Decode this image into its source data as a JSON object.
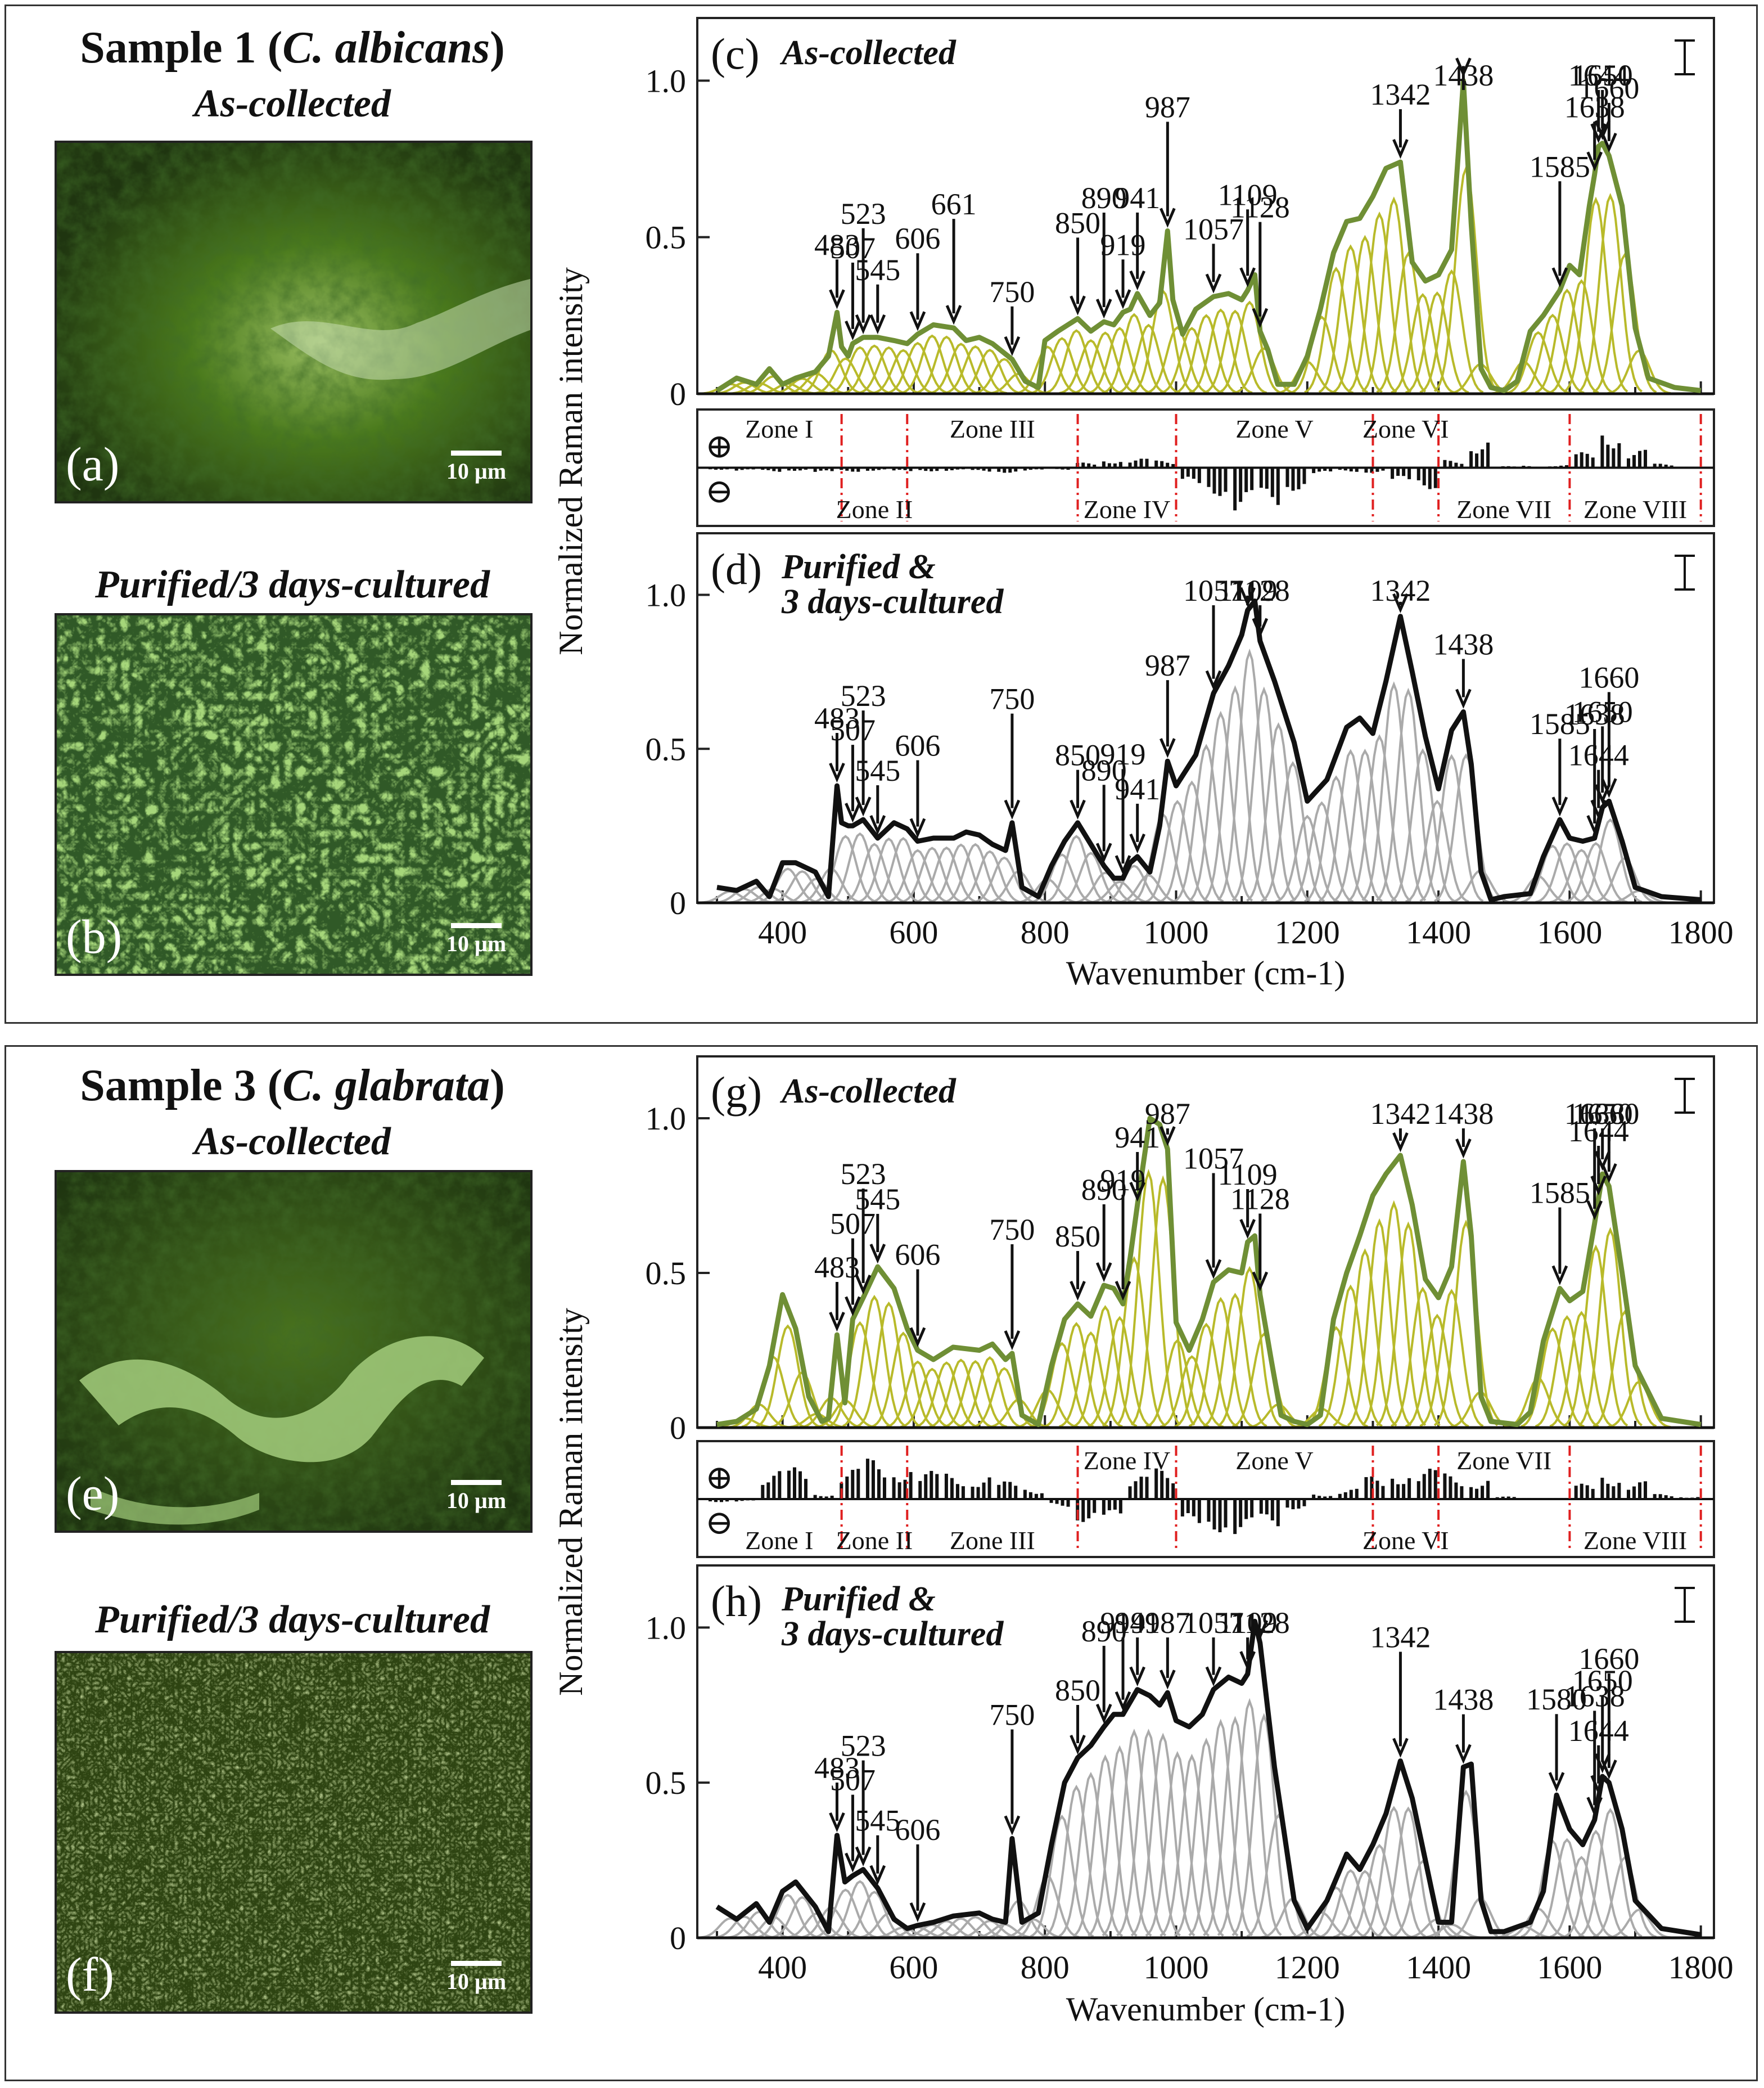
{
  "samples": [
    {
      "title_prefix": "Sample 1 (",
      "species": "C. albicans",
      "title_suffix": ")",
      "label_collected": "As-collected",
      "label_cultured": "Purified/3 days-cultured",
      "micro_letters": [
        "(a)",
        "(b)"
      ],
      "scale_label": "10 µm",
      "micrograph_colors": {
        "collected": [
          "#1f3510",
          "#4a7a1c",
          "#9bbf62"
        ],
        "cultured": [
          "#0c1a06",
          "#2c4a10",
          "#a6d67a"
        ]
      }
    },
    {
      "title_prefix": "Sample 3 (",
      "species": "C. glabrata",
      "title_suffix": ")",
      "label_collected": "As-collected",
      "label_cultured": "Purified/3 days-cultured",
      "micro_letters": [
        "(e)",
        "(f)"
      ],
      "scale_label": "10 µm",
      "micrograph_colors": {
        "collected": [
          "#1e3410",
          "#48721e",
          "#a3cc7c"
        ],
        "cultured": [
          "#1e2c0c",
          "#4d6a22",
          "#8aa654"
        ]
      }
    }
  ],
  "chart_data": [
    {
      "type": "line",
      "panel": "(c)",
      "title": "As-collected",
      "title_style": "bold-italic",
      "xlim": [
        270,
        1820
      ],
      "ylim": [
        0,
        1.2
      ],
      "yticks": [
        0,
        0.5,
        1.0
      ],
      "ylabel": "Normalized Raman intensity",
      "line_color": "#6f8f35",
      "deconvolution_color": "#b8ba2a",
      "series": [
        {
          "x": [
            300,
            330,
            360,
            380,
            400,
            420,
            450,
            470,
            483,
            490,
            500,
            507,
            523,
            545,
            570,
            590,
            606,
            630,
            661,
            680,
            700,
            720,
            750,
            770,
            790,
            800,
            820,
            850,
            870,
            890,
            905,
            919,
            930,
            941,
            960,
            975,
            987,
            995,
            1010,
            1030,
            1057,
            1080,
            1100,
            1109,
            1120,
            1128,
            1140,
            1155,
            1180,
            1200,
            1220,
            1240,
            1260,
            1280,
            1300,
            1320,
            1342,
            1360,
            1380,
            1400,
            1420,
            1438,
            1450,
            1465,
            1480,
            1500,
            1520,
            1540,
            1560,
            1585,
            1600,
            1615,
            1630,
            1638,
            1644,
            1650,
            1660,
            1680,
            1700,
            1720,
            1760,
            1800
          ],
          "y": [
            0.01,
            0.05,
            0.03,
            0.08,
            0.03,
            0.05,
            0.07,
            0.12,
            0.26,
            0.15,
            0.12,
            0.16,
            0.18,
            0.18,
            0.17,
            0.16,
            0.19,
            0.22,
            0.21,
            0.17,
            0.18,
            0.16,
            0.11,
            0.04,
            0.02,
            0.17,
            0.2,
            0.24,
            0.2,
            0.23,
            0.22,
            0.26,
            0.27,
            0.32,
            0.25,
            0.29,
            0.52,
            0.3,
            0.19,
            0.27,
            0.31,
            0.32,
            0.3,
            0.33,
            0.38,
            0.2,
            0.14,
            0.03,
            0.03,
            0.12,
            0.27,
            0.45,
            0.55,
            0.56,
            0.63,
            0.72,
            0.74,
            0.42,
            0.36,
            0.38,
            0.46,
            1.0,
            0.54,
            0.08,
            0.02,
            0.01,
            0.04,
            0.2,
            0.25,
            0.33,
            0.41,
            0.38,
            0.6,
            0.7,
            0.79,
            0.8,
            0.76,
            0.6,
            0.21,
            0.05,
            0.02,
            0.01
          ]
        }
      ],
      "peak_labels": [
        "483",
        "507",
        "523",
        "545",
        "606",
        "661",
        "750",
        "850",
        "890",
        "919",
        "941",
        "987",
        "1057",
        "1109",
        "1128",
        "1342",
        "1438",
        "1585",
        "1638",
        "1644",
        "1650",
        "1660"
      ]
    },
    {
      "type": "bar",
      "panel": "difference-c",
      "signs": [
        "⊕",
        "⊖"
      ],
      "zones": [
        {
          "name": "Zone I",
          "side": "top"
        },
        {
          "name": "Zone II",
          "side": "bottom"
        },
        {
          "name": "Zone III",
          "side": "top"
        },
        {
          "name": "Zone IV",
          "side": "bottom"
        },
        {
          "name": "Zone V",
          "side": "top"
        },
        {
          "name": "Zone VI",
          "side": "top"
        },
        {
          "name": "Zone VII",
          "side": "bottom"
        },
        {
          "name": "Zone VIII",
          "side": "bottom"
        }
      ],
      "zone_boundaries": [
        300,
        490,
        590,
        850,
        1000,
        1300,
        1400,
        1600,
        1800
      ],
      "x": [
        300,
        340,
        380,
        420,
        460,
        500,
        540,
        580,
        620,
        660,
        700,
        740,
        780,
        820,
        860,
        900,
        940,
        980,
        1020,
        1060,
        1100,
        1140,
        1180,
        1220,
        1260,
        1300,
        1340,
        1380,
        1420,
        1460,
        1500,
        1540,
        1580,
        1620,
        1660,
        1700,
        1740,
        1780
      ],
      "values": [
        -0.04,
        -0.06,
        -0.08,
        -0.06,
        -0.1,
        -0.08,
        -0.06,
        -0.08,
        -0.07,
        -0.06,
        -0.08,
        -0.1,
        -0.06,
        -0.04,
        0.1,
        0.16,
        0.18,
        0.14,
        -0.35,
        -0.55,
        -0.85,
        -0.75,
        -0.45,
        -0.12,
        -0.08,
        -0.1,
        -0.3,
        -0.42,
        0.15,
        0.55,
        0.03,
        0.04,
        0.05,
        0.3,
        0.75,
        0.35,
        0.08,
        0.02
      ]
    },
    {
      "type": "line",
      "panel": "(d)",
      "title": "Purified & 3 days-cultured",
      "title_style": "bold-italic",
      "xlim": [
        270,
        1820
      ],
      "ylim": [
        0,
        1.2
      ],
      "yticks": [
        0,
        0.5,
        1.0
      ],
      "line_color": "#111111",
      "deconvolution_color": "#aaaaaa",
      "series": [
        {
          "x": [
            300,
            330,
            360,
            380,
            400,
            420,
            450,
            470,
            483,
            490,
            500,
            507,
            523,
            545,
            570,
            590,
            606,
            630,
            661,
            680,
            700,
            720,
            740,
            750,
            765,
            790,
            810,
            830,
            850,
            870,
            890,
            905,
            919,
            930,
            941,
            960,
            975,
            987,
            1000,
            1030,
            1057,
            1080,
            1100,
            1109,
            1120,
            1128,
            1150,
            1180,
            1200,
            1230,
            1260,
            1280,
            1300,
            1320,
            1342,
            1360,
            1380,
            1400,
            1420,
            1438,
            1450,
            1465,
            1480,
            1500,
            1540,
            1560,
            1585,
            1600,
            1620,
            1638,
            1650,
            1660,
            1680,
            1700,
            1740,
            1800
          ],
          "y": [
            0.05,
            0.04,
            0.07,
            0.02,
            0.13,
            0.13,
            0.1,
            0.02,
            0.38,
            0.26,
            0.25,
            0.25,
            0.27,
            0.21,
            0.26,
            0.24,
            0.2,
            0.21,
            0.21,
            0.23,
            0.22,
            0.19,
            0.17,
            0.26,
            0.05,
            0.02,
            0.12,
            0.2,
            0.26,
            0.19,
            0.12,
            0.08,
            0.08,
            0.13,
            0.15,
            0.1,
            0.25,
            0.46,
            0.38,
            0.48,
            0.68,
            0.77,
            0.87,
            0.95,
            0.98,
            0.85,
            0.72,
            0.52,
            0.33,
            0.4,
            0.57,
            0.6,
            0.55,
            0.72,
            0.93,
            0.75,
            0.54,
            0.37,
            0.56,
            0.62,
            0.45,
            0.1,
            0.01,
            0.02,
            0.03,
            0.15,
            0.27,
            0.21,
            0.2,
            0.21,
            0.31,
            0.33,
            0.2,
            0.05,
            0.02,
            0.01
          ]
        }
      ],
      "peak_labels": [
        "483",
        "507",
        "523",
        "545",
        "606",
        "750",
        "850",
        "890",
        "919",
        "941",
        "987",
        "1057",
        "1109",
        "1128",
        "1342",
        "1438",
        "1585",
        "1638",
        "1644",
        "1650",
        "1660"
      ]
    },
    {
      "type": "line",
      "panel": "(g)",
      "title": "As-collected",
      "title_style": "bold-italic",
      "xlim": [
        270,
        1820
      ],
      "ylim": [
        0,
        1.2
      ],
      "yticks": [
        0,
        0.5,
        1.0
      ],
      "line_color": "#6f8f35",
      "deconvolution_color": "#b8ba2a",
      "series": [
        {
          "x": [
            300,
            330,
            360,
            380,
            400,
            420,
            440,
            460,
            470,
            483,
            495,
            507,
            523,
            545,
            570,
            590,
            606,
            630,
            660,
            700,
            720,
            740,
            750,
            765,
            790,
            810,
            830,
            850,
            870,
            890,
            905,
            919,
            930,
            941,
            960,
            975,
            987,
            1000,
            1020,
            1040,
            1057,
            1080,
            1100,
            1109,
            1120,
            1128,
            1145,
            1160,
            1180,
            1200,
            1220,
            1240,
            1260,
            1280,
            1300,
            1320,
            1342,
            1360,
            1380,
            1400,
            1420,
            1438,
            1450,
            1465,
            1480,
            1520,
            1540,
            1560,
            1585,
            1600,
            1620,
            1638,
            1650,
            1660,
            1680,
            1700,
            1740,
            1800
          ],
          "y": [
            0.01,
            0.02,
            0.06,
            0.2,
            0.43,
            0.32,
            0.1,
            0.02,
            0.03,
            0.3,
            0.08,
            0.35,
            0.42,
            0.52,
            0.45,
            0.32,
            0.25,
            0.22,
            0.26,
            0.25,
            0.27,
            0.22,
            0.24,
            0.04,
            0.01,
            0.2,
            0.35,
            0.4,
            0.36,
            0.46,
            0.45,
            0.4,
            0.55,
            0.72,
            1.0,
            0.98,
            0.9,
            0.34,
            0.25,
            0.35,
            0.47,
            0.51,
            0.5,
            0.6,
            0.62,
            0.43,
            0.22,
            0.04,
            0.02,
            0.01,
            0.04,
            0.35,
            0.5,
            0.62,
            0.75,
            0.82,
            0.88,
            0.72,
            0.48,
            0.42,
            0.52,
            0.86,
            0.62,
            0.1,
            0.02,
            0.01,
            0.05,
            0.28,
            0.45,
            0.41,
            0.44,
            0.66,
            0.82,
            0.78,
            0.5,
            0.2,
            0.03,
            0.01
          ]
        }
      ],
      "peak_labels": [
        "483",
        "507",
        "523",
        "545",
        "606",
        "750",
        "850",
        "890",
        "919",
        "941",
        "987",
        "1057",
        "1109",
        "1128",
        "1342",
        "1438",
        "1585",
        "1638",
        "1644",
        "1650",
        "1660"
      ]
    },
    {
      "type": "bar",
      "panel": "difference-g",
      "signs": [
        "⊕",
        "⊖"
      ],
      "zones": [
        {
          "name": "Zone I",
          "side": "bottom"
        },
        {
          "name": "Zone II",
          "side": "bottom"
        },
        {
          "name": "Zone III",
          "side": "bottom"
        },
        {
          "name": "Zone IV",
          "side": "top"
        },
        {
          "name": "Zone V",
          "side": "top"
        },
        {
          "name": "Zone VI",
          "side": "bottom"
        },
        {
          "name": "Zone VII",
          "side": "top"
        },
        {
          "name": "Zone VIII",
          "side": "bottom"
        }
      ],
      "zone_boundaries": [
        300,
        490,
        590,
        850,
        1000,
        1300,
        1400,
        1600,
        1800
      ],
      "x": [
        300,
        340,
        380,
        420,
        460,
        500,
        540,
        580,
        620,
        660,
        700,
        740,
        780,
        820,
        860,
        900,
        940,
        980,
        1020,
        1060,
        1100,
        1140,
        1180,
        1220,
        1260,
        1300,
        1340,
        1380,
        1420,
        1460,
        1500,
        1540,
        1580,
        1620,
        1660,
        1700,
        1740,
        1780
      ],
      "values": [
        -0.06,
        -0.05,
        0.55,
        0.62,
        0.1,
        0.6,
        0.8,
        0.65,
        0.55,
        0.5,
        0.45,
        0.35,
        0.2,
        -0.15,
        -0.45,
        -0.4,
        0.45,
        0.6,
        -0.55,
        -0.65,
        -0.7,
        -0.55,
        -0.2,
        0.1,
        0.2,
        0.45,
        0.55,
        0.6,
        0.5,
        0.4,
        0.05,
        0.02,
        0.02,
        0.3,
        0.5,
        0.35,
        0.1,
        0.05
      ]
    },
    {
      "type": "line",
      "panel": "(h)",
      "title": "Purified & 3 days-cultured",
      "title_style": "bold-italic",
      "xlim": [
        270,
        1820
      ],
      "ylim": [
        0,
        1.2
      ],
      "yticks": [
        0,
        0.5,
        1.0
      ],
      "xlabel": "Wavenumber (cm-1)",
      "xticks": [
        400,
        600,
        800,
        1000,
        1200,
        1400,
        1600,
        1800
      ],
      "line_color": "#111111",
      "deconvolution_color": "#aaaaaa",
      "series": [
        {
          "x": [
            300,
            330,
            360,
            380,
            400,
            420,
            450,
            470,
            483,
            495,
            507,
            523,
            545,
            570,
            590,
            606,
            630,
            660,
            700,
            720,
            740,
            750,
            765,
            790,
            810,
            830,
            850,
            870,
            890,
            905,
            919,
            930,
            941,
            960,
            975,
            987,
            1000,
            1020,
            1040,
            1057,
            1080,
            1100,
            1109,
            1120,
            1128,
            1150,
            1180,
            1200,
            1230,
            1260,
            1280,
            1300,
            1320,
            1342,
            1360,
            1380,
            1400,
            1420,
            1438,
            1450,
            1465,
            1480,
            1500,
            1540,
            1560,
            1580,
            1600,
            1620,
            1638,
            1650,
            1660,
            1680,
            1700,
            1740,
            1800
          ],
          "y": [
            0.1,
            0.06,
            0.11,
            0.05,
            0.15,
            0.18,
            0.1,
            0.02,
            0.33,
            0.18,
            0.2,
            0.22,
            0.16,
            0.06,
            0.03,
            0.04,
            0.05,
            0.07,
            0.08,
            0.06,
            0.05,
            0.32,
            0.05,
            0.08,
            0.3,
            0.5,
            0.58,
            0.62,
            0.68,
            0.72,
            0.72,
            0.76,
            0.8,
            0.78,
            0.75,
            0.79,
            0.7,
            0.68,
            0.72,
            0.8,
            0.84,
            0.82,
            0.85,
            1.02,
            0.95,
            0.55,
            0.12,
            0.03,
            0.12,
            0.27,
            0.22,
            0.3,
            0.4,
            0.57,
            0.45,
            0.25,
            0.05,
            0.05,
            0.55,
            0.56,
            0.12,
            0.02,
            0.02,
            0.05,
            0.15,
            0.46,
            0.35,
            0.3,
            0.38,
            0.52,
            0.5,
            0.35,
            0.12,
            0.03,
            0.01
          ]
        }
      ],
      "peak_labels": [
        "483",
        "507",
        "523",
        "545",
        "606",
        "750",
        "850",
        "890",
        "919",
        "941",
        "987",
        "1057",
        "1109",
        "1128",
        "1342",
        "1438",
        "1580",
        "1638",
        "1644",
        "1650",
        "1660"
      ]
    }
  ]
}
